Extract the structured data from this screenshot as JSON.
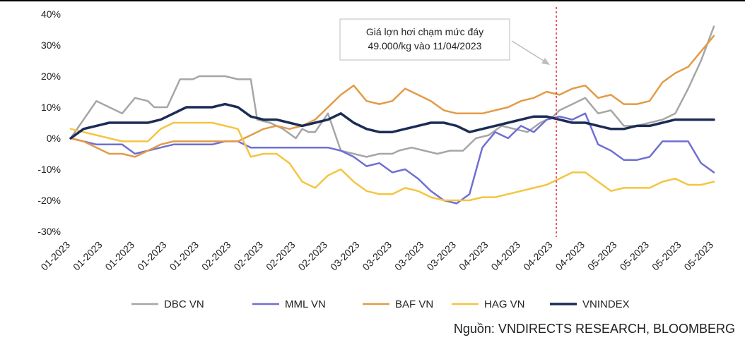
{
  "chart_data": {
    "type": "line",
    "title": "",
    "xlabel": "",
    "ylabel": "",
    "ylim": [
      -30,
      40
    ],
    "y_ticks": [
      "40%",
      "30%",
      "20%",
      "10%",
      "0%",
      "-10%",
      "-20%",
      "-30%"
    ],
    "x_ticks": [
      "01-2023",
      "01-2023",
      "01-2023",
      "01-2023",
      "01-2023",
      "02-2023",
      "02-2023",
      "02-2023",
      "02-2023",
      "03-2023",
      "03-2023",
      "03-2023",
      "03-2023",
      "04-2023",
      "04-2023",
      "04-2023",
      "04-2023",
      "05-2023",
      "05-2023",
      "05-2023",
      "05-2023"
    ],
    "grid": false,
    "legend_position": "bottom",
    "x_range": [
      0,
      100
    ],
    "series": [
      {
        "name": "DBC VN",
        "color": "#a6a6a6",
        "x": [
          0,
          2,
          4,
          6,
          8,
          10,
          12,
          13,
          15,
          17,
          19,
          20,
          22,
          24,
          26,
          28,
          29,
          31,
          33,
          35,
          36,
          37,
          38,
          40,
          42,
          44,
          46,
          48,
          50,
          51,
          53,
          55,
          57,
          59,
          61,
          63,
          65,
          67,
          69,
          71,
          73,
          75,
          76,
          78,
          80,
          82,
          84,
          86,
          88,
          90,
          92,
          94,
          95,
          96,
          98,
          100
        ],
        "y": [
          0,
          6,
          12,
          10,
          8,
          13,
          12,
          10,
          10,
          19,
          19,
          20,
          20,
          20,
          19,
          19,
          6,
          5,
          3,
          0,
          3,
          2,
          2,
          8,
          -4,
          -5,
          -6,
          -5,
          -5,
          -4,
          -3,
          -4,
          -5,
          -4,
          -4,
          0,
          1,
          4,
          3,
          2,
          5,
          7,
          9,
          11,
          13,
          8,
          9,
          4,
          4,
          5,
          6,
          8,
          12,
          16,
          25,
          36
        ]
      },
      {
        "name": "MML VN",
        "color": "#6f6fd4",
        "x": [
          0,
          2,
          4,
          6,
          8,
          10,
          12,
          14,
          16,
          18,
          20,
          22,
          24,
          26,
          28,
          30,
          32,
          34,
          36,
          38,
          40,
          42,
          44,
          46,
          48,
          50,
          52,
          54,
          56,
          58,
          60,
          62,
          64,
          66,
          68,
          70,
          72,
          74,
          76,
          78,
          80,
          82,
          84,
          86,
          88,
          90,
          92,
          94,
          96,
          98,
          100
        ],
        "y": [
          0,
          -1,
          -2,
          -2,
          -2,
          -5,
          -4,
          -3,
          -2,
          -2,
          -2,
          -2,
          -1,
          -1,
          -3,
          -3,
          -3,
          -3,
          -3,
          -3,
          -3,
          -4,
          -6,
          -9,
          -8,
          -11,
          -10,
          -13,
          -17,
          -20,
          -21,
          -18,
          -3,
          2,
          0,
          4,
          2,
          6,
          7,
          6,
          8,
          -2,
          -4,
          -7,
          -7,
          -6,
          -1,
          -1,
          -1,
          -8,
          -11
        ]
      },
      {
        "name": "BAF VN",
        "color": "#e39b47",
        "x": [
          0,
          2,
          4,
          6,
          8,
          10,
          12,
          14,
          16,
          18,
          20,
          22,
          24,
          26,
          28,
          30,
          32,
          34,
          36,
          38,
          40,
          42,
          44,
          46,
          48,
          50,
          52,
          54,
          56,
          58,
          60,
          62,
          64,
          66,
          68,
          70,
          72,
          74,
          76,
          78,
          80,
          82,
          84,
          86,
          88,
          90,
          92,
          94,
          96,
          98,
          100
        ],
        "y": [
          0,
          -1,
          -3,
          -5,
          -5,
          -6,
          -4,
          -2,
          -1,
          -1,
          -1,
          -1,
          -1,
          -1,
          1,
          3,
          4,
          3,
          4,
          6,
          10,
          14,
          17,
          12,
          11,
          12,
          16,
          14,
          12,
          9,
          8,
          8,
          8,
          9,
          10,
          12,
          13,
          15,
          14,
          16,
          17,
          13,
          14,
          11,
          11,
          12,
          18,
          21,
          23,
          28,
          33
        ]
      },
      {
        "name": "HAG VN",
        "color": "#f4c542",
        "x": [
          0,
          2,
          4,
          6,
          8,
          10,
          12,
          14,
          16,
          18,
          20,
          22,
          24,
          26,
          28,
          30,
          32,
          34,
          36,
          38,
          40,
          42,
          44,
          46,
          48,
          50,
          52,
          54,
          56,
          58,
          60,
          62,
          64,
          66,
          68,
          70,
          72,
          74,
          76,
          78,
          80,
          82,
          84,
          86,
          88,
          90,
          92,
          94,
          96,
          98,
          100
        ],
        "y": [
          3,
          2,
          1,
          0,
          -1,
          -1,
          -1,
          3,
          5,
          5,
          5,
          5,
          4,
          3,
          -6,
          -5,
          -5,
          -8,
          -14,
          -16,
          -12,
          -10,
          -14,
          -17,
          -18,
          -18,
          -16,
          -17,
          -19,
          -20,
          -20,
          -20,
          -19,
          -19,
          -18,
          -17,
          -16,
          -15,
          -13,
          -11,
          -11,
          -14,
          -17,
          -16,
          -16,
          -16,
          -14,
          -13,
          -15,
          -15,
          -14
        ]
      },
      {
        "name": "VNINDEX",
        "color": "#1b2c55",
        "x": [
          0,
          2,
          4,
          6,
          8,
          10,
          12,
          14,
          16,
          18,
          20,
          22,
          24,
          26,
          28,
          30,
          32,
          34,
          36,
          38,
          40,
          42,
          44,
          46,
          48,
          50,
          52,
          54,
          56,
          58,
          60,
          62,
          64,
          66,
          68,
          70,
          72,
          74,
          76,
          78,
          80,
          82,
          84,
          86,
          88,
          90,
          92,
          94,
          96,
          98,
          100
        ],
        "y": [
          0,
          3,
          4,
          5,
          5,
          5,
          5,
          6,
          8,
          10,
          10,
          10,
          11,
          10,
          7,
          6,
          6,
          5,
          4,
          5,
          6,
          8,
          5,
          3,
          2,
          2,
          3,
          4,
          5,
          5,
          4,
          2,
          3,
          4,
          5,
          6,
          7,
          7,
          6,
          5,
          5,
          4,
          3,
          3,
          4,
          4,
          5,
          6,
          6,
          6,
          6
        ]
      }
    ],
    "annotation": {
      "lines": [
        "Giá lợn hơi chạm mức đáy",
        "49.000/kg vào 11/04/2023"
      ],
      "vline_x": 75.5
    }
  },
  "source_text": "Nguồn: VNDIRECTS RESEARCH, BLOOMBERG"
}
